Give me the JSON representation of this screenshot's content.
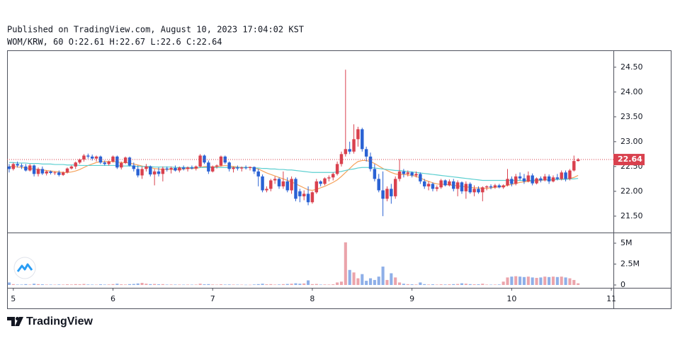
{
  "chart_data": {
    "type": "candlestick",
    "published": "Published on TradingView.com, August 10, 2023 17:04:02 KST",
    "symbol": "WOM/KRW, 60",
    "ohlc_labels": [
      "O:",
      "H:",
      "L:",
      "C:"
    ],
    "brand": "TradingView",
    "categories": [
      null,
      "5",
      null,
      null,
      null,
      null,
      null,
      null,
      null,
      null,
      null,
      null,
      null,
      null,
      null,
      null,
      null,
      null,
      null,
      null,
      null,
      null,
      null,
      null,
      null,
      "6",
      null,
      null,
      null,
      null,
      null,
      null,
      null,
      null,
      null,
      null,
      null,
      null,
      null,
      null,
      null,
      null,
      null,
      null,
      null,
      null,
      null,
      null,
      null,
      "7",
      null,
      null,
      null,
      null,
      null,
      null,
      null,
      null,
      null,
      null,
      null,
      null,
      null,
      null,
      null,
      null,
      null,
      null,
      null,
      null,
      null,
      null,
      null,
      "8",
      null,
      null,
      null,
      null,
      null,
      null,
      null,
      null,
      null,
      null,
      null,
      null,
      null,
      null,
      null,
      null,
      null,
      null,
      null,
      null,
      null,
      null,
      null,
      "9",
      null,
      null,
      null,
      null,
      null,
      null,
      null,
      null,
      null,
      null,
      null,
      null,
      null,
      null,
      null,
      null,
      null,
      null,
      null,
      null,
      null,
      null,
      null,
      "10",
      null,
      null,
      null,
      null,
      null,
      null,
      null,
      null,
      null,
      null,
      null,
      null,
      null,
      null,
      null,
      null,
      null,
      null,
      null,
      null,
      null,
      null,
      null,
      "11"
    ],
    "open": [
      22.5,
      22.45,
      22.55,
      22.52,
      22.5,
      22.42,
      22.52,
      22.35,
      22.45,
      22.36,
      22.4,
      22.37,
      22.38,
      22.33,
      22.38,
      22.46,
      22.5,
      22.58,
      22.64,
      22.72,
      22.7,
      22.66,
      22.7,
      22.58,
      22.55,
      22.6,
      22.7,
      22.48,
      22.57,
      22.68,
      22.52,
      22.45,
      22.32,
      22.45,
      22.5,
      22.34,
      22.4,
      22.35,
      22.46,
      22.44,
      22.47,
      22.42,
      22.48,
      22.45,
      22.48,
      22.46,
      22.5,
      22.72,
      22.58,
      22.4,
      22.5,
      22.52,
      22.7,
      22.58,
      22.45,
      22.48,
      22.46,
      22.48,
      22.47,
      22.49,
      22.4,
      22.3,
      22.02,
      22.05,
      22.22,
      22.25,
      22.1,
      22.2,
      22.02,
      22.25,
      22.0,
      21.9,
      21.95,
      21.78,
      21.98,
      22.2,
      22.15,
      22.26,
      22.28,
      22.35,
      22.55,
      22.75,
      22.85,
      22.8,
      23.05,
      23.25,
      22.85,
      22.7,
      22.45,
      22.25,
      22.02,
      21.85,
      22.05,
      21.9,
      22.25,
      22.4,
      22.35,
      22.38,
      22.32,
      22.35,
      22.2,
      22.1,
      22.15,
      22.05,
      22.08,
      22.22,
      22.12,
      22.2,
      22.05,
      22.18,
      22.0,
      22.15,
      21.98,
      22.05,
      21.98,
      22.08,
      22.1,
      22.08,
      22.12,
      22.08,
      22.12,
      22.25,
      22.15,
      22.3,
      22.26,
      22.2,
      22.32,
      22.16,
      22.26,
      22.22,
      22.3,
      22.2,
      22.28,
      22.25,
      22.38,
      22.25,
      22.42,
      22.61,
      null,
      null,
      null,
      null,
      null,
      null,
      null,
      null
    ],
    "high": [
      22.55,
      22.58,
      22.6,
      22.56,
      22.55,
      22.55,
      22.54,
      22.48,
      22.5,
      22.42,
      22.42,
      22.4,
      22.42,
      22.4,
      22.48,
      22.52,
      22.6,
      22.66,
      22.75,
      22.76,
      22.74,
      22.72,
      22.72,
      22.62,
      22.62,
      22.72,
      22.72,
      22.6,
      22.7,
      22.7,
      22.58,
      22.52,
      22.5,
      22.55,
      22.52,
      22.45,
      22.48,
      22.5,
      22.5,
      22.5,
      22.52,
      22.5,
      22.52,
      22.5,
      22.52,
      22.52,
      22.75,
      22.74,
      22.62,
      22.52,
      22.54,
      22.72,
      22.72,
      22.6,
      22.5,
      22.52,
      22.5,
      22.52,
      22.5,
      22.5,
      22.45,
      22.34,
      22.1,
      22.25,
      22.3,
      22.28,
      22.4,
      22.28,
      22.3,
      22.28,
      22.05,
      22.02,
      22.1,
      22.0,
      22.25,
      22.22,
      22.28,
      22.32,
      22.38,
      22.6,
      22.8,
      24.45,
      23.0,
      23.35,
      23.3,
      23.28,
      22.9,
      22.78,
      22.55,
      22.35,
      22.4,
      22.1,
      22.15,
      22.3,
      22.65,
      22.45,
      22.42,
      22.4,
      22.4,
      22.38,
      22.25,
      22.2,
      22.18,
      22.12,
      22.25,
      22.24,
      22.24,
      22.25,
      22.22,
      22.2,
      22.2,
      22.18,
      22.12,
      22.1,
      22.1,
      22.12,
      22.14,
      22.15,
      22.15,
      22.14,
      22.45,
      22.3,
      22.35,
      22.38,
      22.35,
      22.4,
      22.36,
      22.28,
      22.3,
      22.35,
      22.34,
      22.32,
      22.35,
      22.42,
      22.42,
      22.45,
      22.72,
      22.67,
      null,
      null,
      null,
      null,
      null,
      null,
      null,
      null
    ],
    "low": [
      22.38,
      22.42,
      22.48,
      22.45,
      22.4,
      22.4,
      22.3,
      22.3,
      22.33,
      22.32,
      22.34,
      22.33,
      22.3,
      22.31,
      22.36,
      22.44,
      22.45,
      22.55,
      22.6,
      22.66,
      22.62,
      22.6,
      22.55,
      22.52,
      22.52,
      22.58,
      22.45,
      22.44,
      22.55,
      22.5,
      22.4,
      22.28,
      22.25,
      22.4,
      22.3,
      22.12,
      22.3,
      22.2,
      22.4,
      22.36,
      22.4,
      22.38,
      22.42,
      22.4,
      22.44,
      22.42,
      22.48,
      22.55,
      22.35,
      22.38,
      22.46,
      22.5,
      22.55,
      22.4,
      22.38,
      22.42,
      22.4,
      22.44,
      22.42,
      22.35,
      22.1,
      21.98,
      21.98,
      22.0,
      22.15,
      22.05,
      22.05,
      21.98,
      21.95,
      21.8,
      21.78,
      21.82,
      21.72,
      21.75,
      21.95,
      22.1,
      22.12,
      22.2,
      22.22,
      22.32,
      22.5,
      22.7,
      22.75,
      22.76,
      22.9,
      22.8,
      22.6,
      22.4,
      22.2,
      21.98,
      21.5,
      21.8,
      21.75,
      21.85,
      22.2,
      22.28,
      22.3,
      22.28,
      22.28,
      22.15,
      22.05,
      22.02,
      22.0,
      22.0,
      22.05,
      22.1,
      22.1,
      22.0,
      21.9,
      21.95,
      21.85,
      21.95,
      21.9,
      21.95,
      21.8,
      22.02,
      22.04,
      22.05,
      22.06,
      22.05,
      22.1,
      22.1,
      22.12,
      22.22,
      22.15,
      22.18,
      22.12,
      22.14,
      22.18,
      22.2,
      22.15,
      22.18,
      22.22,
      22.22,
      22.2,
      22.22,
      22.4,
      22.6,
      null,
      null,
      null,
      null,
      null,
      null,
      null,
      null
    ],
    "close": [
      22.45,
      22.55,
      22.52,
      22.5,
      22.42,
      22.52,
      22.35,
      22.45,
      22.36,
      22.4,
      22.37,
      22.38,
      22.33,
      22.38,
      22.46,
      22.5,
      22.58,
      22.64,
      22.72,
      22.7,
      22.66,
      22.7,
      22.58,
      22.55,
      22.6,
      22.7,
      22.48,
      22.57,
      22.68,
      22.52,
      22.45,
      22.32,
      22.45,
      22.5,
      22.34,
      22.4,
      22.35,
      22.46,
      22.44,
      22.47,
      22.42,
      22.48,
      22.45,
      22.48,
      22.46,
      22.5,
      22.72,
      22.58,
      22.4,
      22.5,
      22.52,
      22.7,
      22.58,
      22.45,
      22.48,
      22.46,
      22.48,
      22.47,
      22.49,
      22.4,
      22.3,
      22.02,
      22.05,
      22.22,
      22.25,
      22.1,
      22.2,
      22.02,
      22.25,
      21.85,
      21.9,
      21.95,
      21.78,
      21.98,
      22.2,
      22.15,
      22.26,
      22.28,
      22.35,
      22.55,
      22.75,
      22.85,
      22.8,
      23.05,
      23.25,
      22.85,
      22.7,
      22.45,
      22.25,
      22.02,
      21.85,
      22.05,
      21.9,
      22.25,
      22.4,
      22.35,
      22.38,
      22.32,
      22.35,
      22.2,
      22.1,
      22.15,
      22.05,
      22.08,
      22.22,
      22.12,
      22.2,
      22.05,
      22.18,
      22.0,
      22.15,
      21.98,
      22.05,
      21.98,
      22.08,
      22.1,
      22.08,
      22.12,
      22.08,
      22.12,
      22.25,
      22.15,
      22.3,
      22.26,
      22.2,
      22.32,
      22.16,
      22.26,
      22.22,
      22.3,
      22.2,
      22.28,
      22.25,
      22.38,
      22.25,
      22.42,
      22.61,
      22.64,
      null,
      null,
      null,
      null,
      null,
      null,
      null,
      null
    ],
    "volume": [
      300000,
      100000,
      50000,
      50000,
      100000,
      50000,
      150000,
      100000,
      80000,
      50000,
      50000,
      40000,
      60000,
      50000,
      80000,
      60000,
      100000,
      80000,
      120000,
      60000,
      50000,
      40000,
      80000,
      50000,
      60000,
      100000,
      150000,
      80000,
      60000,
      100000,
      120000,
      180000,
      250000,
      150000,
      100000,
      120000,
      80000,
      100000,
      50000,
      60000,
      50000,
      50000,
      40000,
      50000,
      40000,
      50000,
      150000,
      80000,
      100000,
      60000,
      40000,
      80000,
      50000,
      60000,
      50000,
      40000,
      40000,
      30000,
      30000,
      60000,
      100000,
      150000,
      80000,
      100000,
      50000,
      60000,
      100000,
      120000,
      150000,
      200000,
      150000,
      180000,
      550000,
      100000,
      120000,
      50000,
      60000,
      50000,
      80000,
      300000,
      400000,
      5100000,
      1800000,
      1500000,
      800000,
      1300000,
      500000,
      800000,
      600000,
      1000000,
      2200000,
      600000,
      1400000,
      900000,
      300000,
      150000,
      100000,
      80000,
      60000,
      300000,
      100000,
      60000,
      80000,
      50000,
      80000,
      60000,
      80000,
      100000,
      120000,
      200000,
      150000,
      100000,
      80000,
      80000,
      150000,
      50000,
      40000,
      50000,
      60000,
      400000,
      900000,
      1000000,
      1050000,
      1000000,
      950000,
      1000000,
      900000,
      850000,
      900000,
      1000000,
      950000,
      1000000,
      950000,
      1000000,
      900000,
      800000,
      600000,
      200000,
      null,
      null,
      null,
      null,
      null,
      null,
      null,
      null
    ],
    "ma": [
      {
        "color": "#f5a15a",
        "values": [
          22.5,
          22.5,
          22.49,
          22.48,
          22.47,
          22.46,
          22.45,
          22.44,
          22.43,
          22.42,
          22.41,
          22.4,
          22.39,
          22.38,
          22.38,
          22.39,
          22.41,
          22.44,
          22.48,
          22.52,
          22.55,
          22.58,
          22.6,
          22.6,
          22.6,
          22.6,
          22.59,
          22.58,
          22.58,
          22.57,
          22.55,
          22.53,
          22.51,
          22.49,
          22.48,
          22.46,
          22.45,
          22.44,
          22.44,
          22.44,
          22.44,
          22.45,
          22.45,
          22.46,
          22.46,
          22.46,
          22.48,
          22.5,
          22.5,
          22.49,
          22.5,
          22.51,
          22.52,
          22.51,
          22.5,
          22.49,
          22.48,
          22.48,
          22.48,
          22.47,
          22.45,
          22.41,
          22.37,
          22.34,
          22.31,
          22.28,
          22.25,
          22.22,
          22.19,
          22.15,
          22.11,
          22.07,
          22.03,
          22.02,
          22.04,
          22.07,
          22.1,
          22.14,
          22.18,
          22.23,
          22.3,
          22.38,
          22.46,
          22.54,
          22.6,
          22.62,
          22.62,
          22.6,
          22.56,
          22.51,
          22.46,
          22.42,
          22.38,
          22.35,
          22.34,
          22.34,
          22.33,
          22.32,
          22.3,
          22.27,
          22.23,
          22.2,
          22.17,
          22.15,
          22.14,
          22.14,
          22.13,
          22.12,
          22.11,
          22.1,
          22.09,
          22.08,
          22.07,
          22.07,
          22.06,
          22.06,
          22.07,
          22.08,
          22.09,
          22.1,
          22.12,
          22.14,
          22.16,
          22.18,
          22.19,
          22.2,
          22.21,
          22.21,
          22.22,
          22.23,
          22.23,
          22.24,
          22.24,
          22.25,
          22.25,
          22.26,
          22.28,
          22.32,
          null,
          null,
          null,
          null,
          null,
          null,
          null,
          null
        ]
      },
      {
        "color": "#5ccfd0",
        "values": [
          22.58,
          22.58,
          22.57,
          22.57,
          22.57,
          22.56,
          22.56,
          22.56,
          22.55,
          22.55,
          22.55,
          22.54,
          22.54,
          22.54,
          22.53,
          22.53,
          22.53,
          22.52,
          22.52,
          22.52,
          22.52,
          22.52,
          22.52,
          22.52,
          22.52,
          22.52,
          22.52,
          22.51,
          22.51,
          22.51,
          22.51,
          22.5,
          22.5,
          22.5,
          22.5,
          22.49,
          22.49,
          22.49,
          22.49,
          22.49,
          22.48,
          22.48,
          22.48,
          22.48,
          22.48,
          22.48,
          22.48,
          22.48,
          22.48,
          22.48,
          22.48,
          22.48,
          22.48,
          22.48,
          22.48,
          22.48,
          22.48,
          22.48,
          22.48,
          22.47,
          22.47,
          22.46,
          22.46,
          22.45,
          22.45,
          22.44,
          22.44,
          22.43,
          22.43,
          22.42,
          22.41,
          22.4,
          22.39,
          22.38,
          22.38,
          22.38,
          22.38,
          22.38,
          22.38,
          22.39,
          22.4,
          22.42,
          22.44,
          22.45,
          22.47,
          22.48,
          22.48,
          22.48,
          22.47,
          22.46,
          22.45,
          22.44,
          22.43,
          22.42,
          22.42,
          22.41,
          22.4,
          22.39,
          22.38,
          22.37,
          22.36,
          22.35,
          22.34,
          22.33,
          22.32,
          22.31,
          22.3,
          22.29,
          22.28,
          22.27,
          22.26,
          22.25,
          22.24,
          22.23,
          22.22,
          22.22,
          22.22,
          22.22,
          22.22,
          22.22,
          22.22,
          22.22,
          22.22,
          22.22,
          22.22,
          22.22,
          22.22,
          22.23,
          22.23,
          22.23,
          22.23,
          22.23,
          22.24,
          22.24,
          22.24,
          22.25,
          22.25,
          22.26,
          null,
          null,
          null,
          null,
          null,
          null,
          null,
          null
        ]
      }
    ],
    "up_color": "#d9414e",
    "down_color": "#2a62d4",
    "up_volume_color": "#eba4ab",
    "down_volume_color": "#8eafe8",
    "last_price_line": true,
    "ylim": [
      21.17,
      24.84
    ],
    "yticks": [
      {
        "value": 21.5,
        "label": "21.50"
      },
      {
        "value": 22,
        "label": "22.00"
      },
      {
        "value": 22.5,
        "label": "22.50"
      },
      {
        "value": 23,
        "label": "23.00"
      },
      {
        "value": 23.5,
        "label": "23.50"
      },
      {
        "value": 24,
        "label": "24.00"
      },
      {
        "value": 24.5,
        "label": "24.50"
      }
    ],
    "volume_ylim": [
      -340000,
      6190000
    ],
    "volume_yticks": [
      {
        "value": 5000000,
        "label": "5M"
      },
      {
        "value": 2500000,
        "label": "2.5M"
      },
      0
    ]
  }
}
